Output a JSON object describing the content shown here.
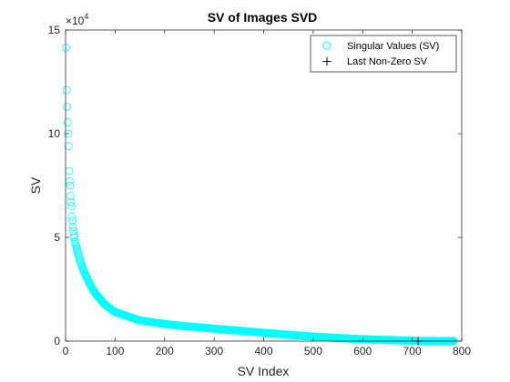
{
  "chart_data": {
    "type": "scatter",
    "title": "SV of Images SVD",
    "xlabel": "SV Index",
    "ylabel": "SV",
    "xlim": [
      0,
      800
    ],
    "ylim": [
      0,
      150000
    ],
    "x_ticks": [
      "0",
      "100",
      "200",
      "300",
      "400",
      "500",
      "600",
      "700",
      "800"
    ],
    "y_ticks": [
      "0",
      "5",
      "10",
      "15"
    ],
    "y_exponent": "×10",
    "y_exponent_power": "4",
    "grid": false,
    "legend_position": "top-right",
    "series": [
      {
        "name": "Singular Values (SV)",
        "marker": "circle",
        "color": "#00FFFF",
        "x_range": [
          1,
          784
        ],
        "leading_values": [
          141500,
          121000,
          113000,
          105500,
          100000,
          94000,
          82000,
          77000,
          75000,
          70000,
          67000,
          65000,
          60000,
          58000,
          55000,
          53000,
          51000,
          50000,
          48000,
          47000
        ],
        "curve_points": [
          {
            "x": 20,
            "y": 47000
          },
          {
            "x": 30,
            "y": 38000
          },
          {
            "x": 40,
            "y": 32000
          },
          {
            "x": 50,
            "y": 27000
          },
          {
            "x": 60,
            "y": 23000
          },
          {
            "x": 80,
            "y": 17500
          },
          {
            "x": 100,
            "y": 14000
          },
          {
            "x": 150,
            "y": 10000
          },
          {
            "x": 200,
            "y": 8200
          },
          {
            "x": 250,
            "y": 7000
          },
          {
            "x": 300,
            "y": 6000
          },
          {
            "x": 350,
            "y": 5000
          },
          {
            "x": 400,
            "y": 4000
          },
          {
            "x": 450,
            "y": 3000
          },
          {
            "x": 500,
            "y": 2200
          },
          {
            "x": 550,
            "y": 1500
          },
          {
            "x": 600,
            "y": 900
          },
          {
            "x": 650,
            "y": 500
          },
          {
            "x": 700,
            "y": 200
          },
          {
            "x": 710,
            "y": 100
          },
          {
            "x": 720,
            "y": 0
          },
          {
            "x": 784,
            "y": 0
          }
        ]
      },
      {
        "name": "Last Non-Zero SV",
        "marker": "plus",
        "color": "#000000",
        "points": [
          {
            "x": 712,
            "y": 0
          }
        ]
      }
    ]
  }
}
